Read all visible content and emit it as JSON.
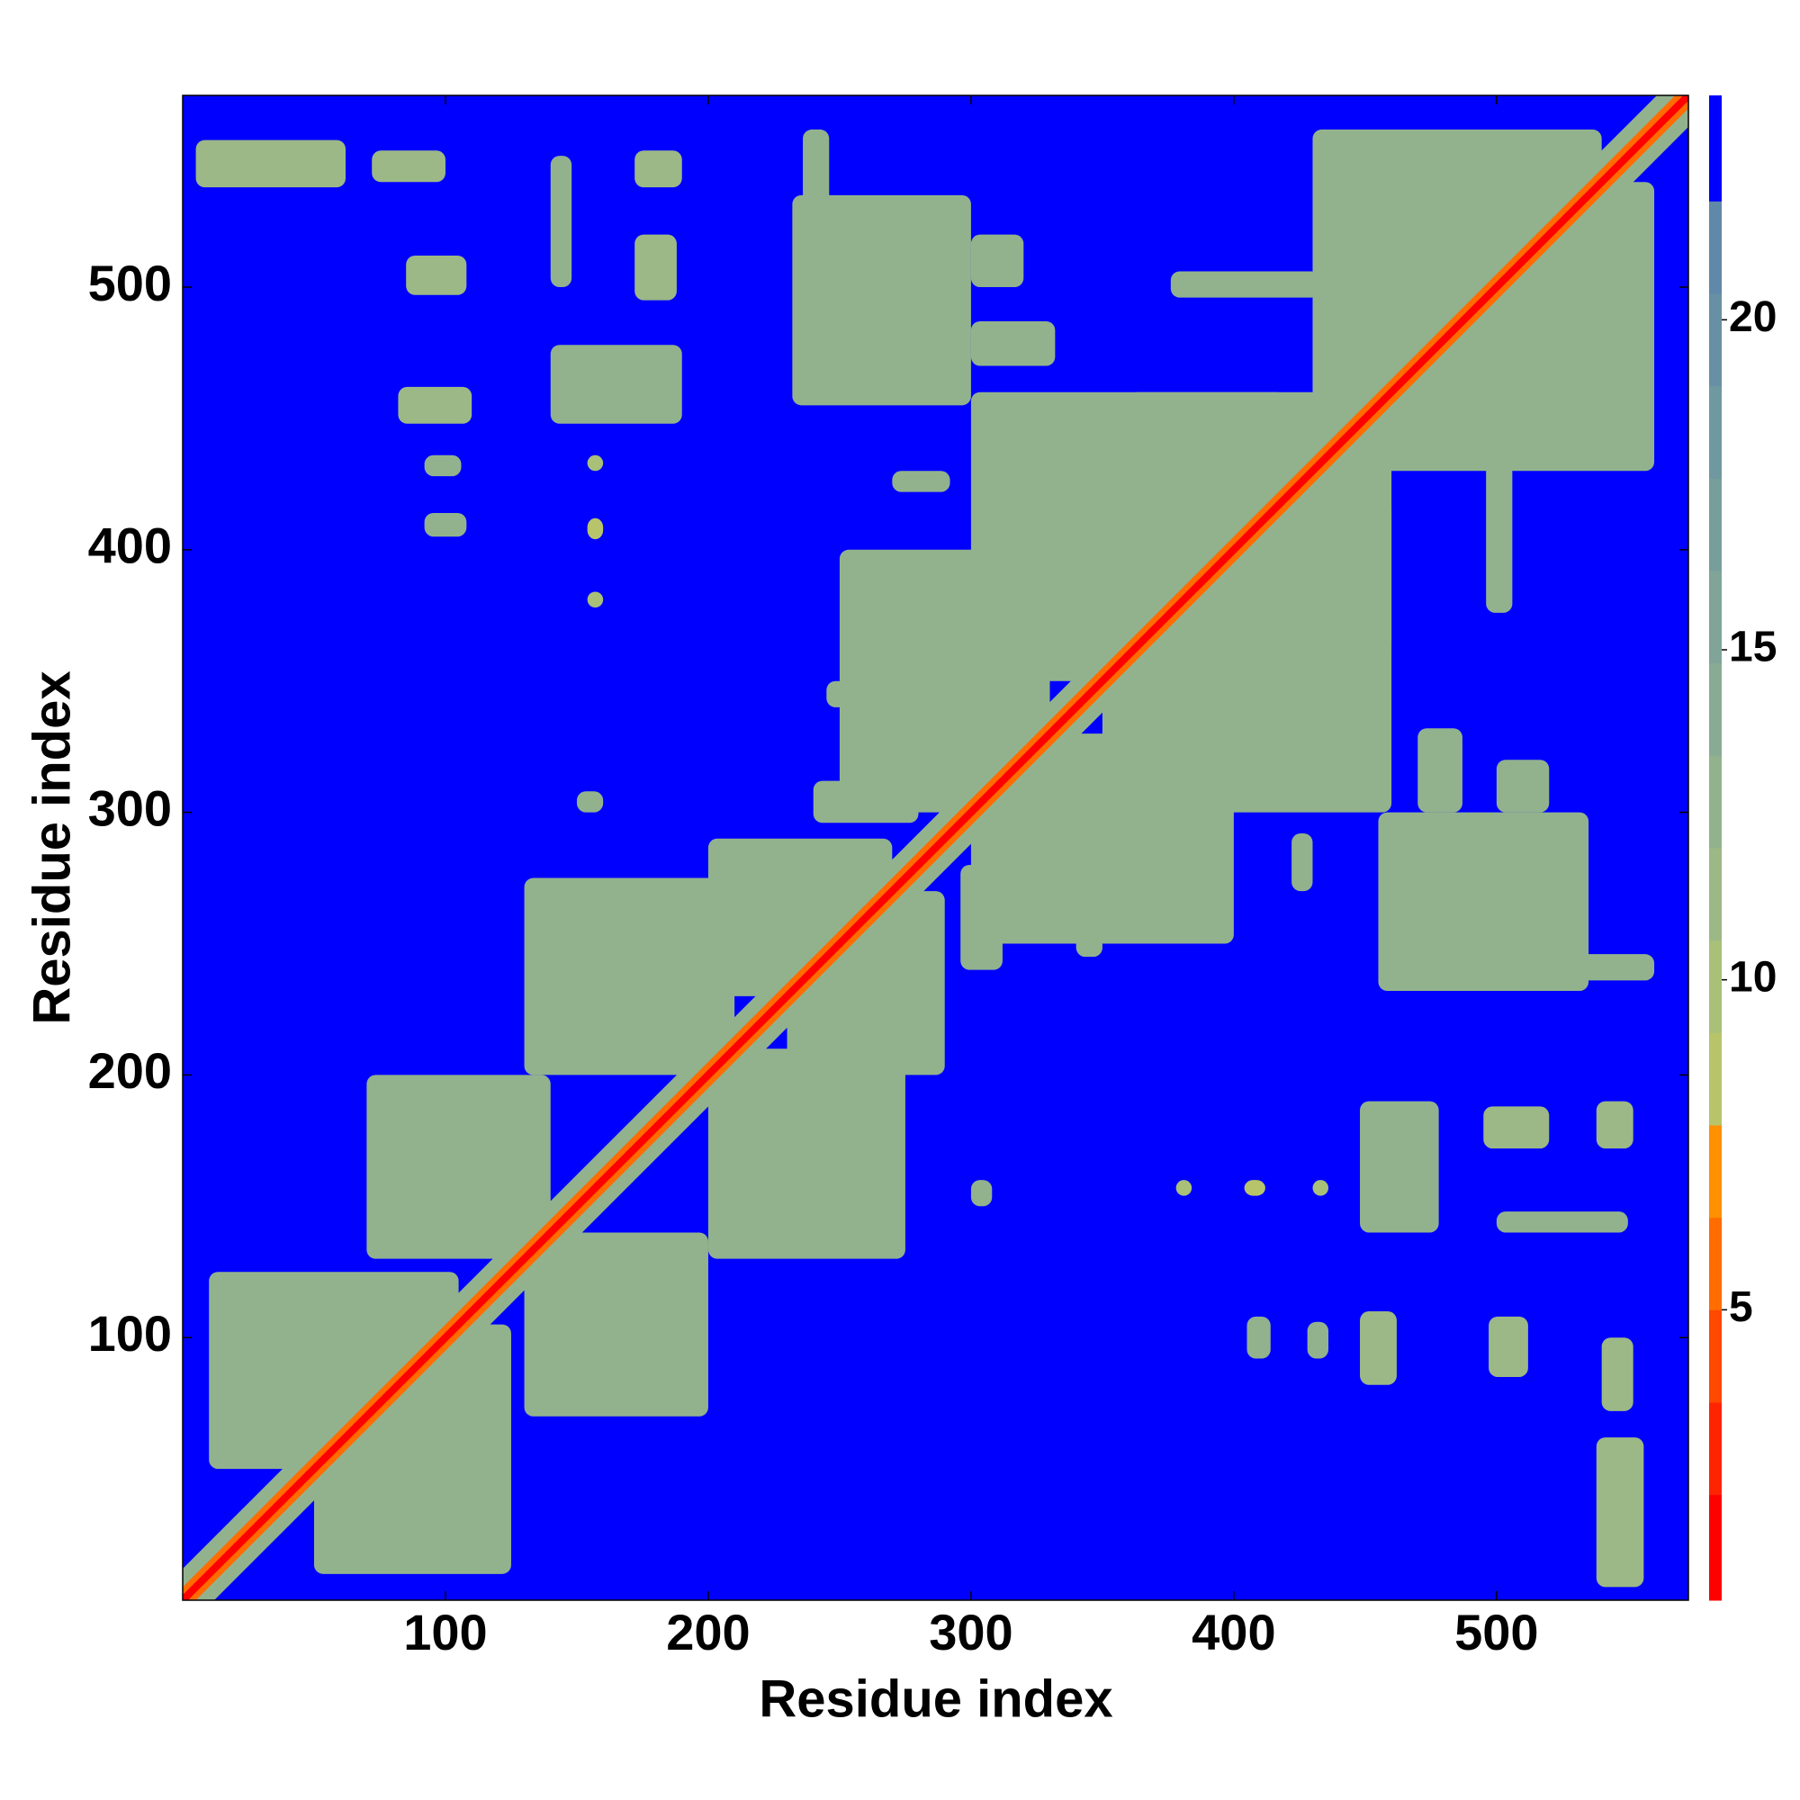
{
  "chart_data": {
    "type": "heatmap",
    "xlabel": "Residue index",
    "ylabel": "Residue index",
    "xlim": [
      0,
      573
    ],
    "ylim": [
      0,
      573
    ],
    "xticks": [
      100,
      200,
      300,
      400,
      500
    ],
    "yticks": [
      100,
      200,
      300,
      400,
      500
    ],
    "grid": false,
    "symmetric": true,
    "background_value": 23,
    "diagonal_bands": [
      {
        "width": 12,
        "value": 13
      },
      {
        "width": 5,
        "value": 6
      },
      {
        "width": 2,
        "value": 1.5
      }
    ],
    "regions": [
      {
        "x": [
          538,
          556
        ],
        "y": [
          5,
          62
        ],
        "value": 11
      },
      {
        "x": [
          540,
          552
        ],
        "y": [
          72,
          100
        ],
        "value": 11
      },
      {
        "x": [
          497,
          512
        ],
        "y": [
          85,
          108
        ],
        "value": 11
      },
      {
        "x": [
          448,
          462
        ],
        "y": [
          82,
          110
        ],
        "value": 11
      },
      {
        "x": [
          405,
          414
        ],
        "y": [
          92,
          108
        ],
        "value": 12
      },
      {
        "x": [
          428,
          436
        ],
        "y": [
          92,
          106
        ],
        "value": 12
      },
      {
        "x": [
          448,
          478
        ],
        "y": [
          140,
          190
        ],
        "value": 12
      },
      {
        "x": [
          495,
          520
        ],
        "y": [
          172,
          188
        ],
        "value": 11
      },
      {
        "x": [
          538,
          552
        ],
        "y": [
          172,
          190
        ],
        "value": 11
      },
      {
        "x": [
          500,
          550
        ],
        "y": [
          140,
          148
        ],
        "value": 13
      },
      {
        "x": [
          300,
          308
        ],
        "y": [
          150,
          160
        ],
        "value": 13
      },
      {
        "x": [
          404,
          412
        ],
        "y": [
          154,
          160
        ],
        "value": 9
      },
      {
        "x": [
          378,
          384
        ],
        "y": [
          154,
          160
        ],
        "value": 10
      },
      {
        "x": [
          430,
          436
        ],
        "y": [
          154,
          160
        ],
        "value": 10
      },
      {
        "x": [
          50,
          125
        ],
        "y": [
          10,
          105
        ],
        "value": 13
      },
      {
        "x": [
          130,
          200
        ],
        "y": [
          70,
          140
        ],
        "value": 13
      },
      {
        "x": [
          200,
          275
        ],
        "y": [
          130,
          210
        ],
        "value": 13
      },
      {
        "x": [
          230,
          290
        ],
        "y": [
          200,
          270
        ],
        "value": 13
      },
      {
        "x": [
          300,
          400
        ],
        "y": [
          250,
          330
        ],
        "value": 13
      },
      {
        "x": [
          350,
          460
        ],
        "y": [
          300,
          420
        ],
        "value": 13
      },
      {
        "x": [
          380,
          460
        ],
        "y": [
          360,
          445
        ],
        "value": 13
      },
      {
        "x": [
          450,
          560
        ],
        "y": [
          430,
          540
        ],
        "value": 13
      },
      {
        "x": [
          455,
          535
        ],
        "y": [
          232,
          300
        ],
        "value": 13
      },
      {
        "x": [
          470,
          487
        ],
        "y": [
          300,
          332
        ],
        "value": 12
      },
      {
        "x": [
          500,
          520
        ],
        "y": [
          300,
          320
        ],
        "value": 13
      },
      {
        "x": [
          422,
          430
        ],
        "y": [
          270,
          292
        ],
        "value": 12
      },
      {
        "x": [
          496,
          506
        ],
        "y": [
          376,
          433
        ],
        "value": 12
      },
      {
        "x": [
          500,
          560
        ],
        "y": [
          236,
          246
        ],
        "value": 13
      },
      {
        "x": [
          340,
          350
        ],
        "y": [
          245,
          258
        ],
        "value": 12
      },
      {
        "x": [
          296,
          312
        ],
        "y": [
          240,
          280
        ],
        "value": 13
      }
    ],
    "colorbar": {
      "lim": [
        0.6,
        23.4
      ],
      "ticks": [
        5,
        10,
        15,
        20
      ],
      "levels": [
        0.6,
        2.2,
        3.6,
        5.0,
        6.4,
        7.8,
        9.2,
        10.6,
        12.0,
        13.4,
        14.8,
        16.2,
        17.6,
        19.0,
        20.4,
        21.8,
        23.4
      ],
      "colors": [
        "#ff0000",
        "#ff2400",
        "#ff4800",
        "#ff6c00",
        "#ff9000",
        "#b8c46a",
        "#a8c078",
        "#9cb886",
        "#92b28e",
        "#88ab94",
        "#80a598",
        "#789e9c",
        "#7098a0",
        "#6890a4",
        "#6088a8",
        "#0000ff"
      ]
    }
  }
}
